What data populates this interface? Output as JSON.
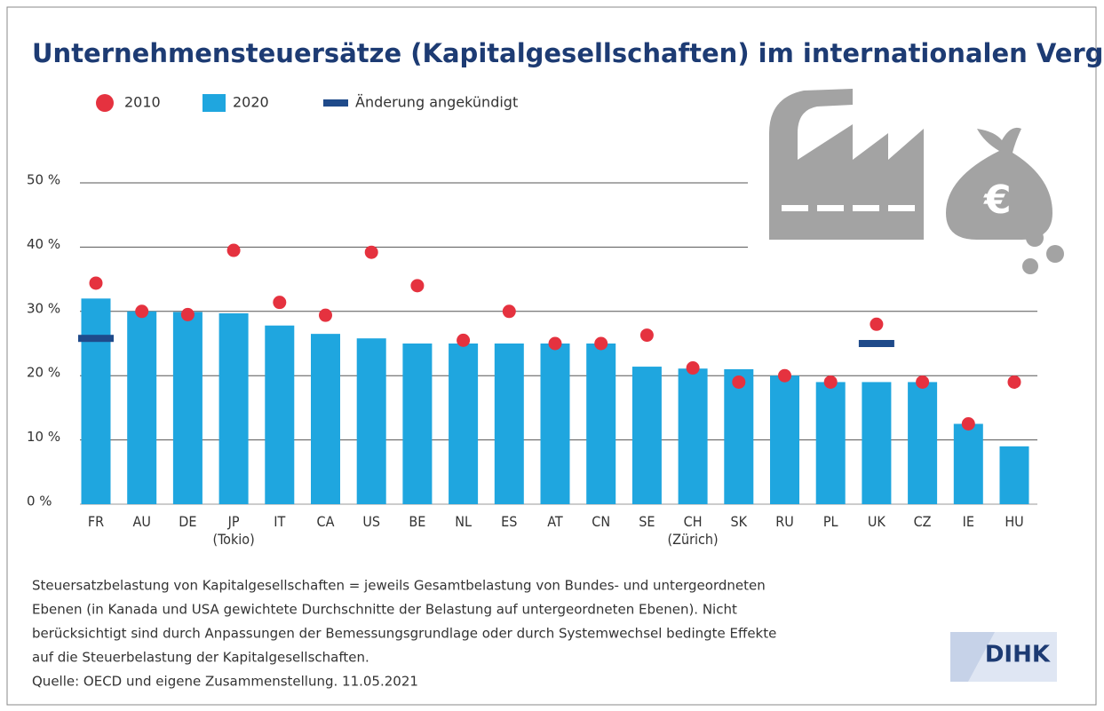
{
  "chart_data": {
    "type": "bar",
    "title": "Unternehmensteuersätze (Kapitalgesellschaften) im internationalen Vergleich",
    "categories": [
      "FR",
      "AU",
      "DE",
      "JP\n(Tokio)",
      "IT",
      "CA",
      "US",
      "BE",
      "NL",
      "ES",
      "AT",
      "CN",
      "SE",
      "CH\n(Zürich)",
      "SK",
      "RU",
      "PL",
      "UK",
      "CZ",
      "IE",
      "HU"
    ],
    "series": [
      {
        "name": "2010",
        "color": "#e5323f",
        "style": "dot",
        "values": [
          34.4,
          30,
          29.5,
          39.5,
          31.4,
          29.4,
          39.2,
          34,
          25.5,
          30,
          25,
          25,
          26.3,
          21.2,
          19,
          20,
          19,
          28,
          19,
          12.5,
          19
        ]
      },
      {
        "name": "2020",
        "color": "#1fa6df",
        "style": "bar",
        "values": [
          32,
          30,
          29.9,
          29.7,
          27.8,
          26.5,
          25.8,
          25,
          25,
          25,
          25,
          25,
          21.4,
          21.1,
          21,
          20,
          19,
          19,
          19,
          12.5,
          9
        ]
      },
      {
        "name": "Änderung angekündigt",
        "color": "#1f4a8a",
        "style": "dash",
        "values": [
          25.8,
          null,
          null,
          null,
          null,
          null,
          null,
          null,
          null,
          null,
          null,
          null,
          null,
          null,
          null,
          null,
          null,
          25,
          null,
          null,
          null
        ]
      }
    ],
    "ylim": [
      0,
      50
    ],
    "yticks": [
      {
        "value": 0,
        "label": "0 %"
      },
      {
        "value": 10,
        "label": "10 %"
      },
      {
        "value": 20,
        "label": "20 %"
      },
      {
        "value": 30,
        "label": "30 %"
      },
      {
        "value": 40,
        "label": "40 %"
      },
      {
        "value": 50,
        "label": "50 %"
      }
    ],
    "grid": true,
    "notes": [
      "Steuersatzbelastung von Kapitalgesellschaften = jeweils Gesamtbelastung von Bundes- und untergeordneten",
      "Ebenen (in Kanada und USA gewichtete Durchschnitte der Belastung auf untergeordneten Ebenen). Nicht",
      "berücksichtigt sind durch Anpassungen der Bemessungsgrundlage oder durch Systemwechsel bedingte Effekte",
      "auf die Steuerbelastung der Kapitalgesellschaften.",
      "Quelle: OECD und eigene Zusammenstellung. 11.05.2021"
    ],
    "logo": "DIHK"
  }
}
